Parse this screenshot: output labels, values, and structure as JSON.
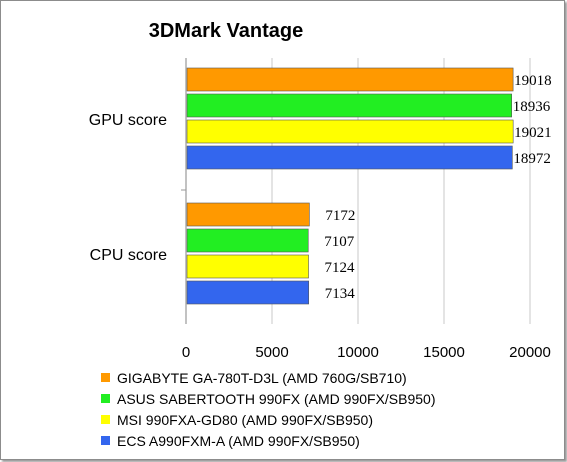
{
  "chart_data": {
    "type": "bar",
    "orientation": "horizontal",
    "title": "3DMark Vantage",
    "categories": [
      "GPU score",
      "CPU score"
    ],
    "series": [
      {
        "name": "GIGABYTE GA-780T-D3L (AMD 760G/SB710)",
        "color": "#ff9900",
        "values": [
          19018,
          7172
        ]
      },
      {
        "name": "ASUS SABERTOOTH 990FX (AMD 990FX/SB950)",
        "color": "#22ee22",
        "values": [
          18936,
          7107
        ]
      },
      {
        "name": "MSI 990FXA-GD80 (AMD 990FX/SB950)",
        "color": "#ffff00",
        "values": [
          19021,
          7124
        ]
      },
      {
        "name": "ECS A990FXM-A (AMD 990FX/SB950)",
        "color": "#3366ee",
        "values": [
          18972,
          7134
        ]
      }
    ],
    "xlim": [
      0,
      20000
    ],
    "xticks": [
      "0",
      "5000",
      "10000",
      "15000",
      "20000"
    ],
    "grid": true,
    "legend": "bottom"
  }
}
